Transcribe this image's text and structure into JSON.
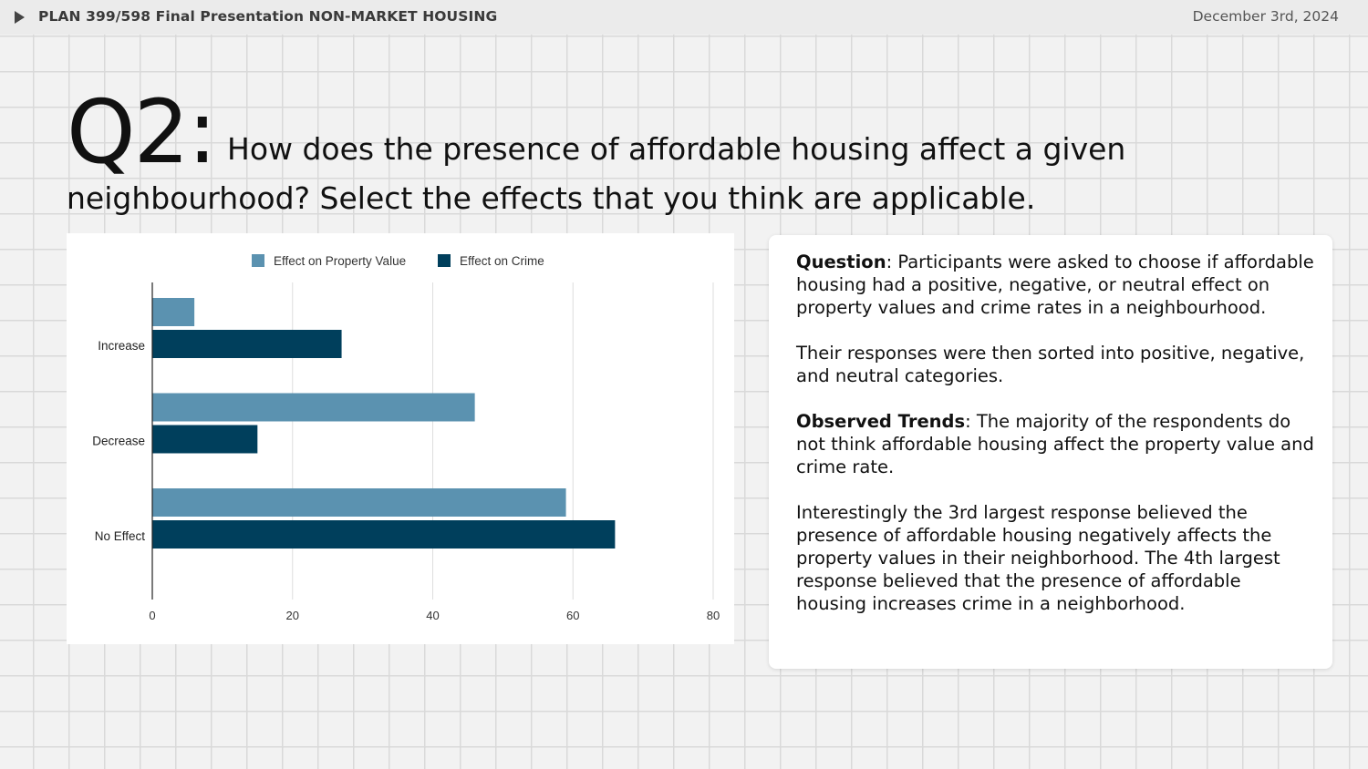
{
  "header": {
    "title": "PLAN 399/598 Final Presentation NON-MARKET HOUSING",
    "date": "December 3rd, 2024"
  },
  "question": {
    "label": "Q2:",
    "text_line1": "How does the presence of affordable housing affect a given",
    "text_line2": "neighbourhood? Select the effects that you think are applicable."
  },
  "info": {
    "question_label": "Question",
    "question_text": ": Participants were asked to choose if affordable housing had a positive, negative, or neutral effect on property values and crime rates in a neighbourhood.",
    "sorted_text": "Their responses were then sorted into positive, negative, and neutral categories.",
    "trends_label": "Observed Trends",
    "trends_text": ": The majority of the respondents do not think affordable housing affect the property value and crime rate.",
    "interesting_text": "Interestingly the 3rd largest response believed the presence of affordable housing negatively affects the property values in their neighborhood. The 4th largest response believed that the presence of affordable housing increases crime in a neighborhood."
  },
  "colors": {
    "property_value": "#5b92b0",
    "crime": "#003f5c",
    "gridline": "#dedede",
    "axis": "#222222"
  },
  "chart_data": {
    "type": "bar",
    "orientation": "horizontal",
    "categories": [
      "Increase",
      "Decrease",
      "No Effect"
    ],
    "series": [
      {
        "name": "Effect on Property Value",
        "values": [
          6,
          46,
          59
        ]
      },
      {
        "name": "Effect on Crime",
        "values": [
          27,
          15,
          66
        ]
      }
    ],
    "xlim": [
      0,
      80
    ],
    "xticks": [
      0,
      20,
      40,
      60,
      80
    ],
    "grid": true,
    "legend": "top",
    "title": "",
    "xlabel": "",
    "ylabel": ""
  }
}
